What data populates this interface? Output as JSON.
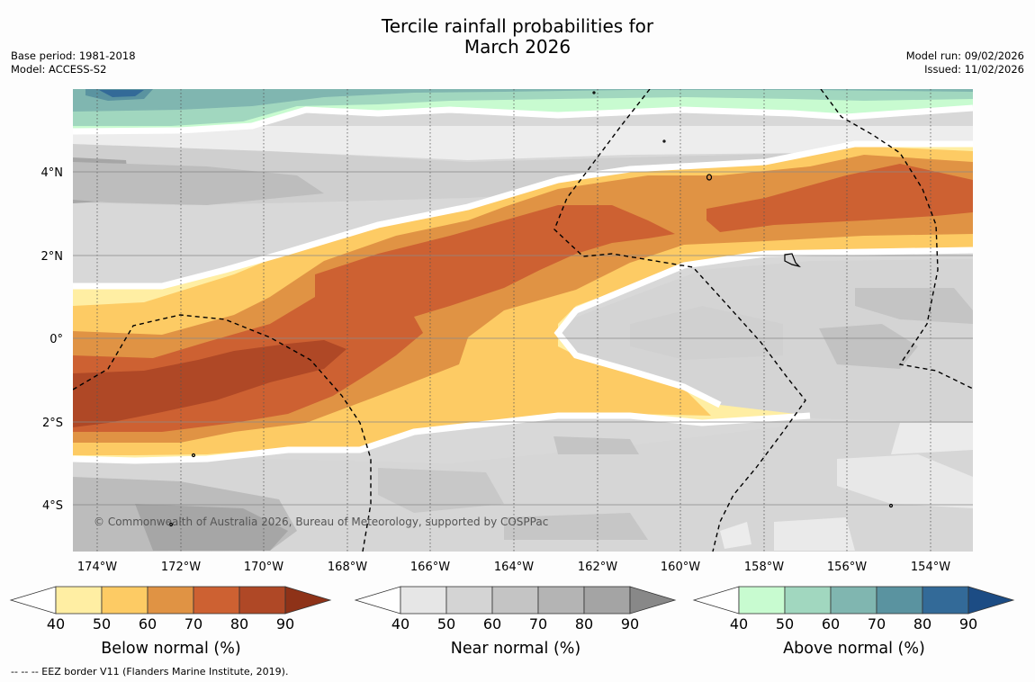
{
  "title": {
    "line1": "Tercile rainfall probabilities for",
    "line2": "March 2026"
  },
  "meta_left": {
    "base_period": "Base period: 1981-2018",
    "model": "Model: ACCESS-S2"
  },
  "meta_right": {
    "model_run": "Model run: 09/02/2026",
    "issued": "Issued: 11/02/2026"
  },
  "map": {
    "lat_labels": [
      "4°N",
      "2°N",
      "0°",
      "2°S",
      "4°S"
    ],
    "lon_labels": [
      "174°W",
      "172°W",
      "170°W",
      "168°W",
      "166°W",
      "164°W",
      "162°W",
      "160°W",
      "158°W",
      "156°W",
      "154°W"
    ],
    "copyright": "© Commonwealth of Australia 2026, Bureau of Meteorology, supported by COSPPac"
  },
  "colorbars": [
    {
      "label": "Below normal (%)",
      "ticks": [
        "40",
        "50",
        "60",
        "70",
        "80",
        "90"
      ],
      "colors": [
        "#ffeea3",
        "#fdcb64",
        "#e09344",
        "#cd6132",
        "#af4826",
        "#8e3218"
      ]
    },
    {
      "label": "Near normal (%)",
      "ticks": [
        "40",
        "50",
        "60",
        "70",
        "80",
        "90"
      ],
      "colors": [
        "#e6e6e6",
        "#d4d4d4",
        "#c4c4c4",
        "#b4b4b4",
        "#a4a4a4",
        "#888888"
      ]
    },
    {
      "label": "Above normal (%)",
      "ticks": [
        "40",
        "50",
        "60",
        "70",
        "80",
        "90"
      ],
      "colors": [
        "#c8fbd0",
        "#a1d7bf",
        "#80b6b0",
        "#5a93a0",
        "#336a98",
        "#1c4c84"
      ]
    }
  ],
  "footer": {
    "legend_text": "--  --  -- EEZ border V11 (Flanders Marine Institute, 2019)."
  }
}
